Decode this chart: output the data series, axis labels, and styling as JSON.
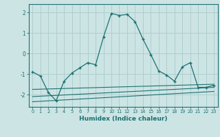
{
  "xlabel": "Humidex (Indice chaleur)",
  "ylabel": "",
  "bg_color": "#cde4e4",
  "grid_color": "#aecece",
  "line_color": "#1a7070",
  "xlim": [
    -0.5,
    23.5
  ],
  "ylim": [
    -2.6,
    2.4
  ],
  "xticks": [
    0,
    1,
    2,
    3,
    4,
    5,
    6,
    7,
    8,
    9,
    10,
    11,
    12,
    13,
    14,
    15,
    16,
    17,
    18,
    19,
    20,
    21,
    22,
    23
  ],
  "yticks": [
    -2,
    -1,
    0,
    1,
    2
  ],
  "main_x": [
    0,
    1,
    2,
    3,
    4,
    5,
    6,
    7,
    8,
    9,
    10,
    11,
    12,
    13,
    14,
    15,
    16,
    17,
    18,
    19,
    20,
    21,
    22,
    23
  ],
  "main_y": [
    -0.9,
    -1.1,
    -1.9,
    -2.3,
    -1.35,
    -0.95,
    -0.7,
    -0.45,
    -0.55,
    0.8,
    1.95,
    1.85,
    1.9,
    1.55,
    0.7,
    -0.05,
    -0.85,
    -1.05,
    -1.35,
    -0.65,
    -0.45,
    -1.65,
    -1.65,
    -1.55
  ],
  "trend1_x": [
    0,
    23
  ],
  "trend1_y": [
    -1.75,
    -1.5
  ],
  "trend2_x": [
    0,
    23
  ],
  "trend2_y": [
    -2.1,
    -1.65
  ],
  "trend3_x": [
    0,
    23
  ],
  "trend3_y": [
    -2.35,
    -1.85
  ]
}
